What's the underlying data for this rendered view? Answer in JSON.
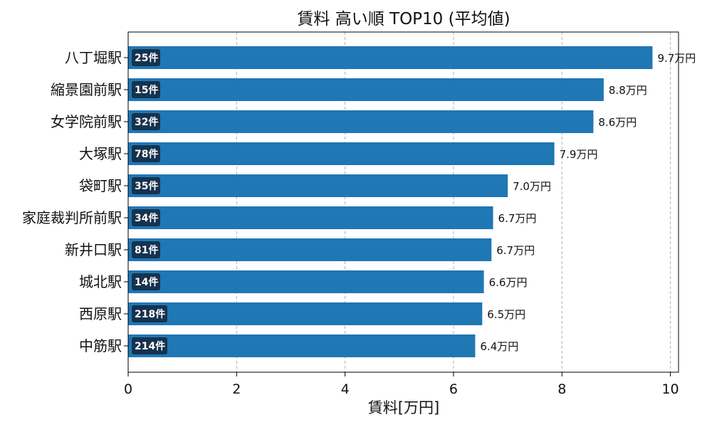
{
  "chart_data": {
    "type": "bar",
    "orientation": "horizontal",
    "title": "賃料 高い順 TOP10 (平均値)",
    "xlabel": "賃料[万円]",
    "ylabel": "",
    "xlim": [
      0,
      10.15
    ],
    "xticks": [
      0,
      2,
      4,
      6,
      8,
      10
    ],
    "grid": "x-dashed",
    "bar_color": "#1f77b4",
    "badge_color": "#16324f",
    "categories": [
      "八丁堀駅",
      "縮景園前駅",
      "女学院前駅",
      "大塚駅",
      "袋町駅",
      "家庭裁判所前駅",
      "新井口駅",
      "城北駅",
      "西原駅",
      "中筋駅"
    ],
    "values": [
      9.67,
      8.77,
      8.58,
      7.86,
      7.0,
      6.73,
      6.7,
      6.56,
      6.53,
      6.4
    ],
    "value_labels": [
      "9.7万円",
      "8.8万円",
      "8.6万円",
      "7.9万円",
      "7.0万円",
      "6.7万円",
      "6.7万円",
      "6.6万円",
      "6.5万円",
      "6.4万円"
    ],
    "count_labels": [
      "25件",
      "15件",
      "32件",
      "78件",
      "35件",
      "34件",
      "81件",
      "14件",
      "218件",
      "214件"
    ]
  }
}
